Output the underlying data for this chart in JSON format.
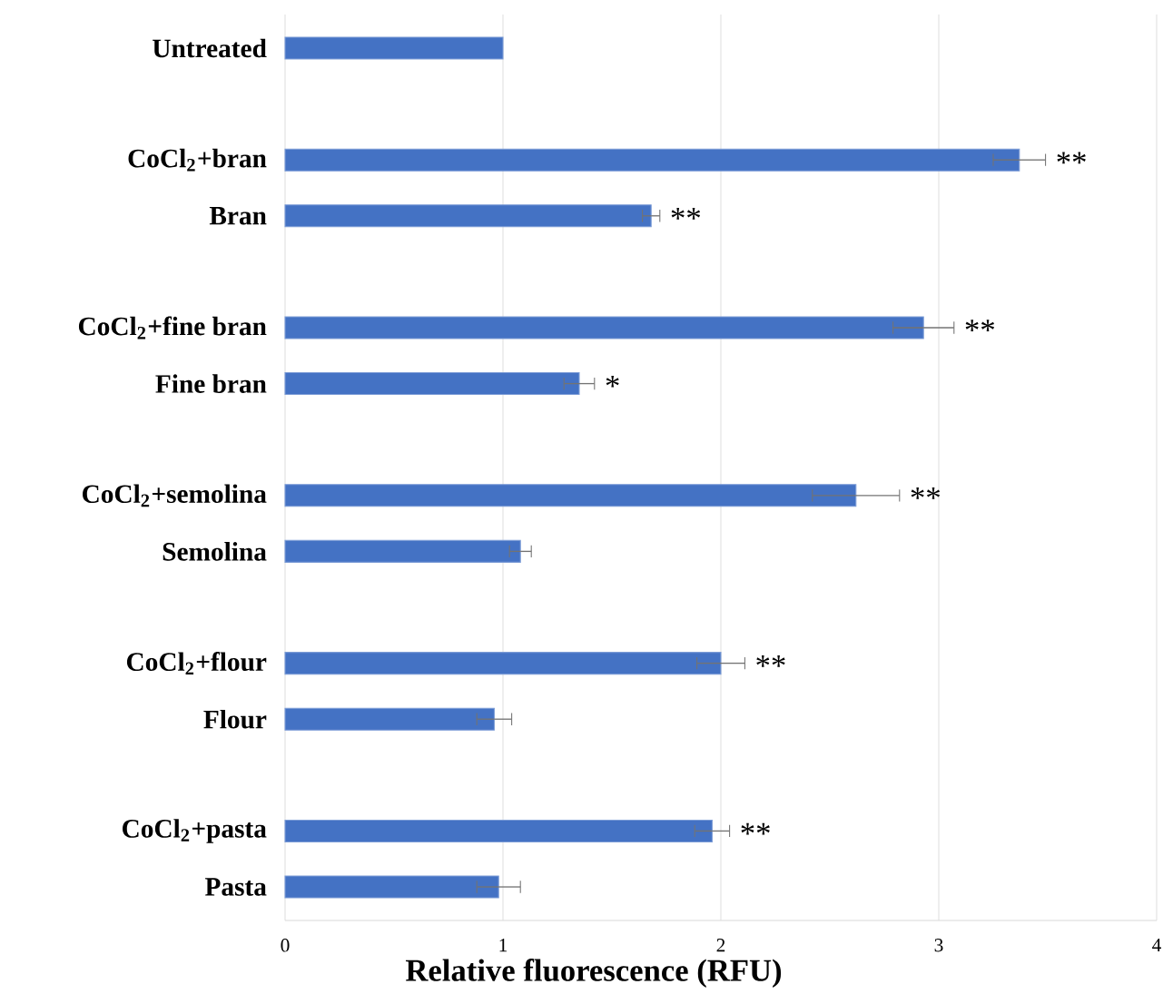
{
  "chart_data": {
    "type": "bar",
    "orientation": "horizontal",
    "xlabel": "Relative fluorescence (RFU)",
    "categories": [
      "Untreated",
      null,
      "CoCl$_{2}$+bran",
      "Bran",
      null,
      "CoCl$_{2}$+fine bran",
      "Fine bran",
      null,
      "CoCl$_{2}$+semolina",
      "Semolina",
      null,
      "CoCl$_{2}$+flour",
      "Flour",
      null,
      "CoCl$_{2}$+pasta",
      "Pasta"
    ],
    "values": [
      1.0,
      null,
      3.37,
      1.68,
      null,
      2.93,
      1.35,
      null,
      2.62,
      1.08,
      null,
      2.0,
      0.96,
      null,
      1.96,
      0.98
    ],
    "errors": [
      null,
      null,
      0.12,
      0.04,
      null,
      0.14,
      0.07,
      null,
      0.2,
      0.05,
      null,
      0.11,
      0.08,
      null,
      0.08,
      0.1
    ],
    "color": "#4472c4",
    "xlim": [
      0,
      4
    ],
    "xticks": [
      0,
      1,
      2,
      3,
      4
    ],
    "grid": "x",
    "annotations": [
      {
        "text": "**",
        "x": 3.49,
        "y": "CoCl$_{2}$+bran"
      },
      {
        "text": "**",
        "x": 1.72,
        "y": "Bran"
      },
      {
        "text": "**",
        "x": 3.07,
        "y": "CoCl$_{2}$+fine bran"
      },
      {
        "text": "*",
        "x": 1.42,
        "y": "Fine bran"
      },
      {
        "text": "**",
        "x": 2.82,
        "y": "CoCl$_{2}$+semolina"
      },
      {
        "text": "**",
        "x": 2.11,
        "y": "CoCl$_{2}$+flour"
      },
      {
        "text": "**",
        "x": 2.04,
        "y": "CoCl$_{2}$+pasta"
      }
    ]
  }
}
